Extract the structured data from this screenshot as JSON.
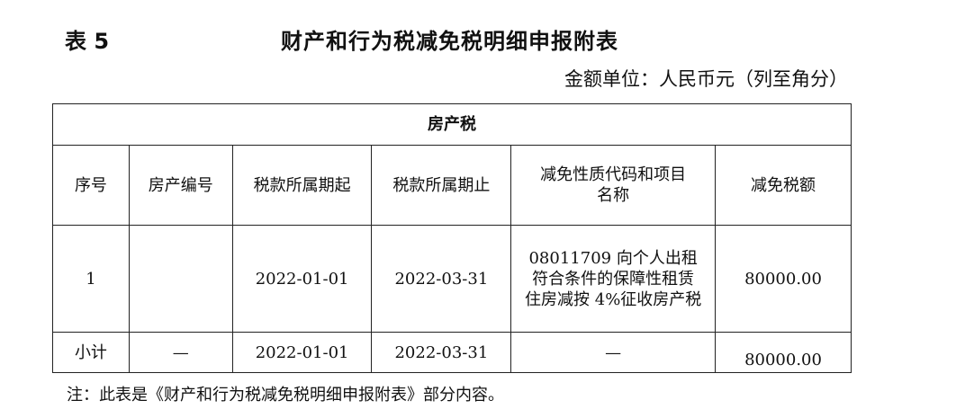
{
  "header": {
    "table_no": "表 5",
    "title": "财产和行为税减免税明细申报附表",
    "unit": "金额单位：人民币元（列至角分）"
  },
  "table": {
    "section": "房产税",
    "columns": [
      "序号",
      "房产编号",
      "税款所属期起",
      "税款所属期止",
      "减免性质代码和项目名称",
      "减免税额"
    ],
    "rows": [
      {
        "seq": "1",
        "property_no": "",
        "start": "2022-01-01",
        "end": "2022-03-31",
        "code_name": "08011709 向个人出租符合条件的保障性租赁住房减按 4%征收房产税",
        "amount": "80000.00"
      }
    ],
    "subtotal": {
      "label": "小计",
      "property_no": "—",
      "start": "2022-01-01",
      "end": "2022-03-31",
      "code_name": "—",
      "amount": "80000.00"
    }
  },
  "note": "注：此表是《财产和行为税减免税明细申报附表》部分内容。"
}
